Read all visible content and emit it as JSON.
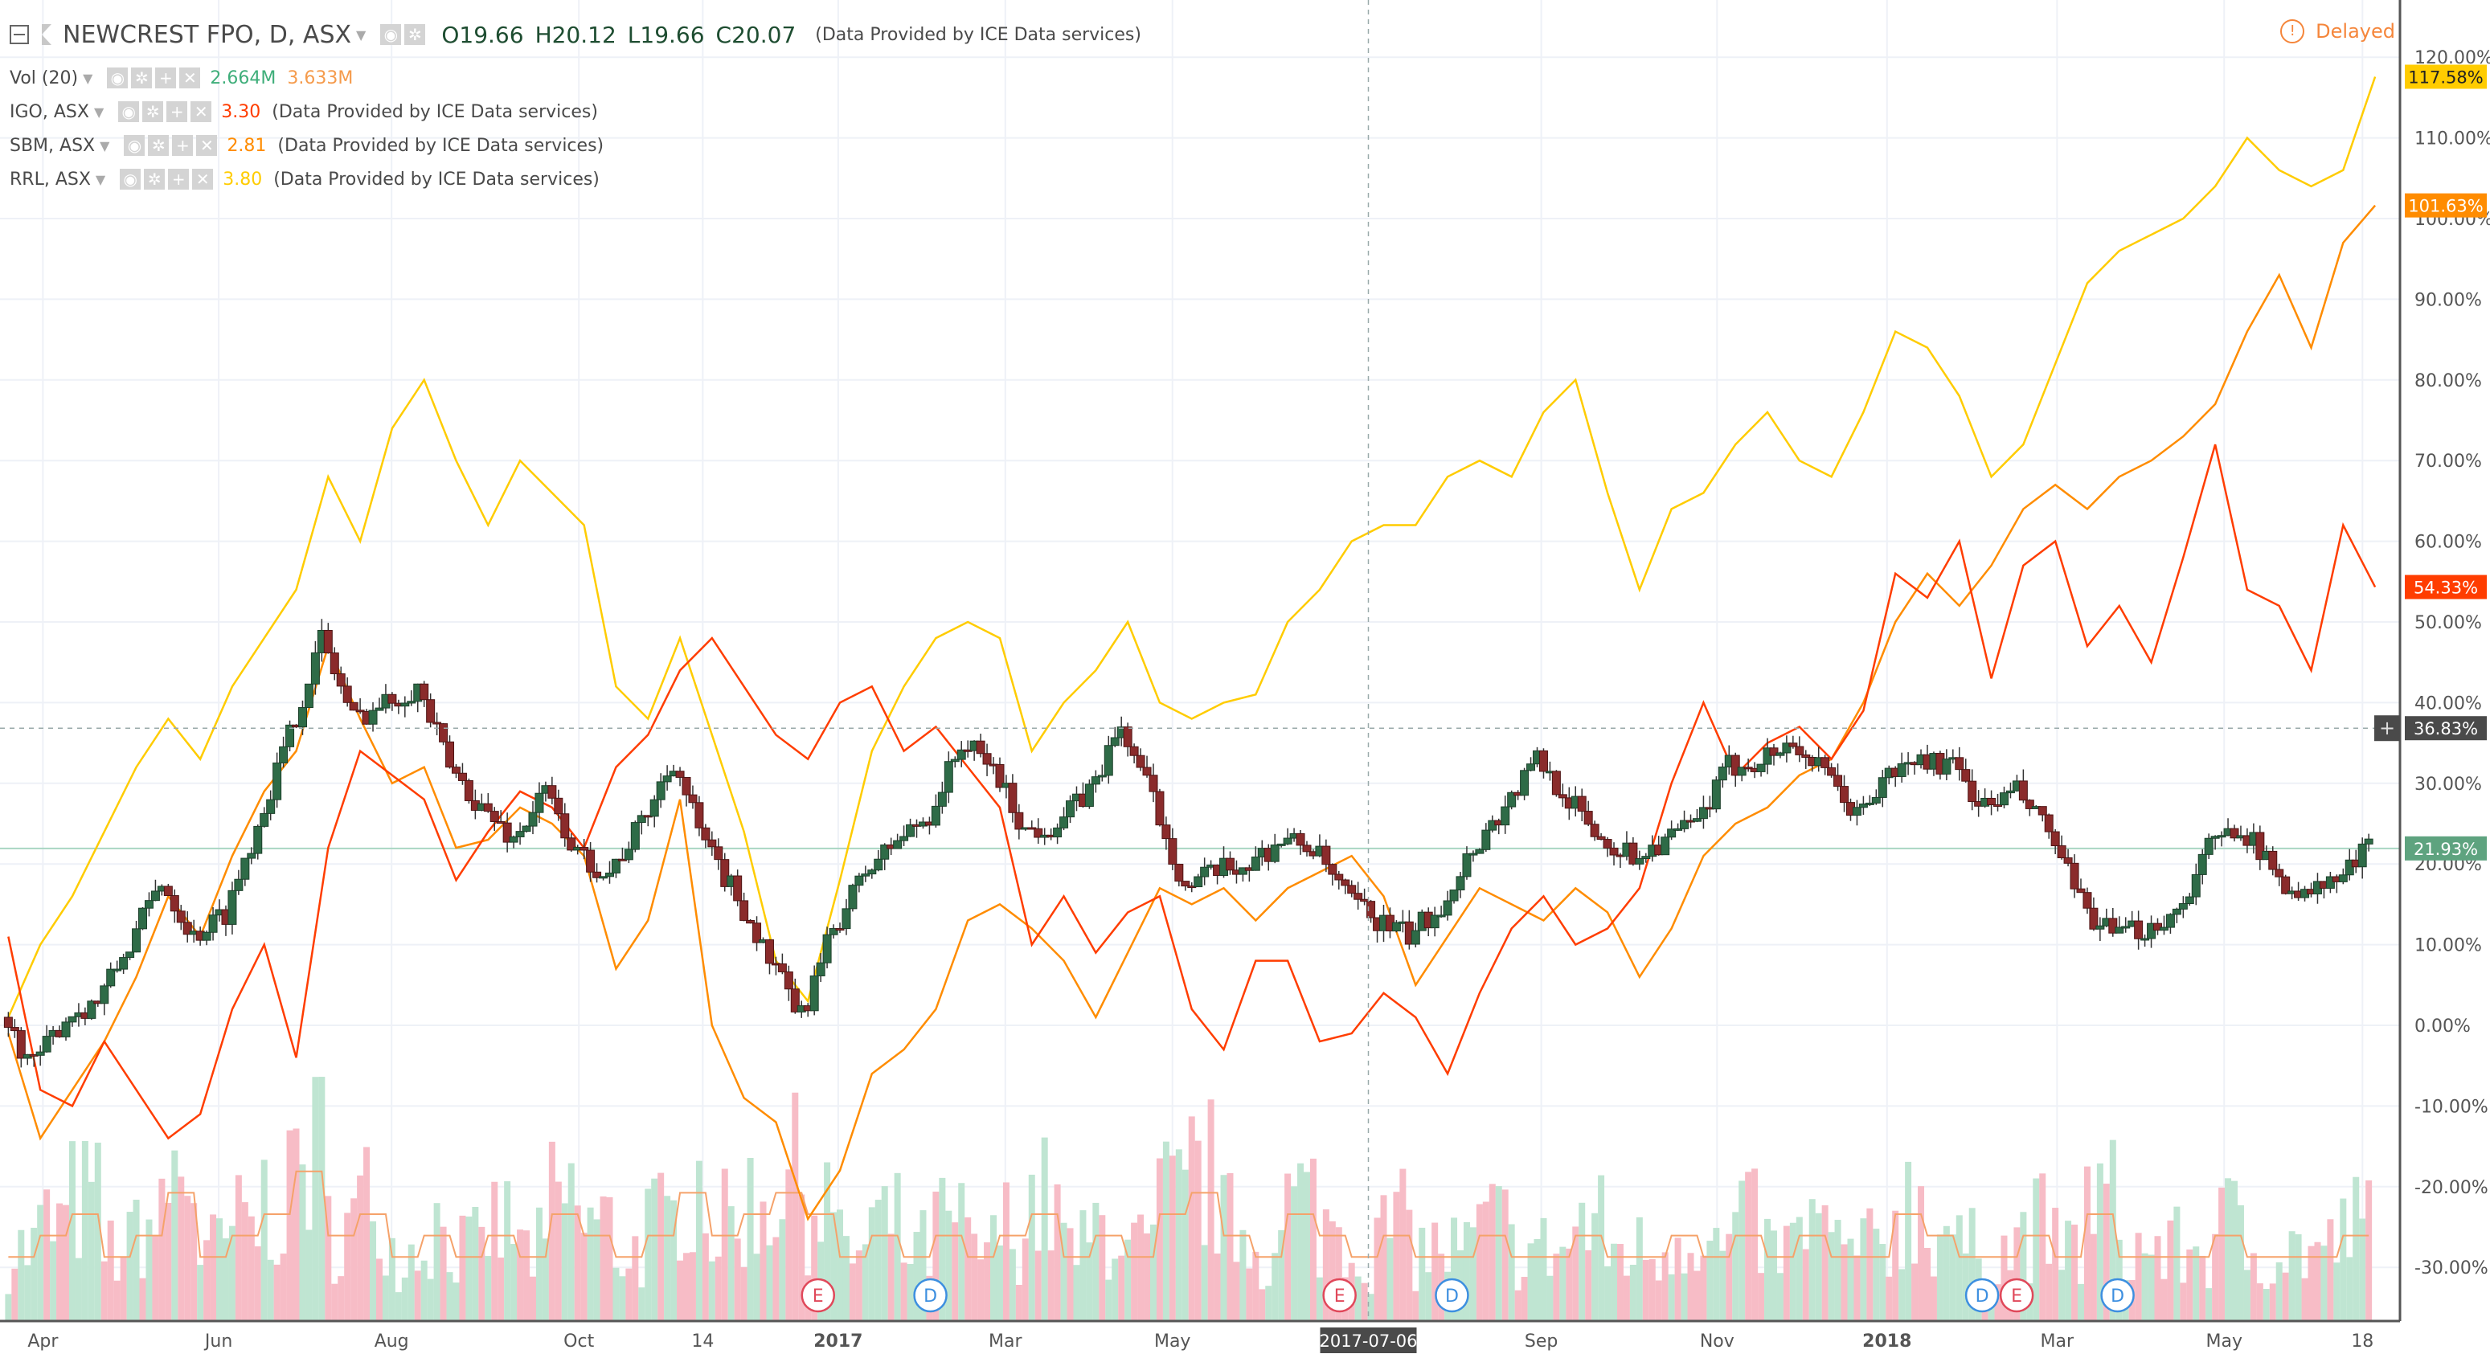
{
  "header": {
    "symbol": "NEWCREST FPO, D, ASX",
    "open": "O19.66",
    "high": "H20.12",
    "low": "L19.66",
    "close": "C20.07",
    "provider": "(Data Provided by ICE Data services)",
    "delayed": "Delayed"
  },
  "volume_legend": {
    "label": "Vol (20)",
    "value": "2.664M",
    "ma": "3.633M"
  },
  "compare": [
    {
      "label": "IGO, ASX",
      "value": "3.30",
      "note": "(Data Provided by ICE Data services)",
      "color": "#ff3d00"
    },
    {
      "label": "SBM, ASX",
      "value": "2.81",
      "note": "(Data Provided by ICE Data services)",
      "color": "#ff8c00"
    },
    {
      "label": "RRL, ASX",
      "value": "3.80",
      "note": "(Data Provided by ICE Data services)",
      "color": "#ffcc00"
    }
  ],
  "chart_data": {
    "type": "line",
    "x_unit": "days since 2016-04-01",
    "x_start": -12,
    "x_step": 11.1,
    "ylabel": "% change",
    "ylim": [
      -35,
      125
    ],
    "y_ticks": [
      "120.00%",
      "110.00%",
      "100.00%",
      "90.00%",
      "80.00%",
      "70.00%",
      "60.00%",
      "50.00%",
      "40.00%",
      "30.00%",
      "20.00%",
      "10.00%",
      "0.00%",
      "-10.00%",
      "-20.00%",
      "-30.00%"
    ],
    "y_tick_values": [
      120,
      110,
      100,
      90,
      80,
      70,
      60,
      50,
      40,
      30,
      20,
      10,
      0,
      -10,
      -20,
      -30
    ],
    "x_ticks": [
      {
        "label": "Apr",
        "day": 0
      },
      {
        "label": "Jun",
        "day": 61
      },
      {
        "label": "Aug",
        "day": 121
      },
      {
        "label": "Oct",
        "day": 186
      },
      {
        "label": "14",
        "day": 229
      },
      {
        "label": "2017",
        "day": 276
      },
      {
        "label": "Mar",
        "day": 334
      },
      {
        "label": "May",
        "day": 392
      },
      {
        "label": "Sep",
        "day": 520
      },
      {
        "label": "Nov",
        "day": 581
      },
      {
        "label": "2018",
        "day": 640
      },
      {
        "label": "Mar",
        "day": 699
      },
      {
        "label": "May",
        "day": 757
      },
      {
        "label": "18",
        "day": 805
      }
    ],
    "crosshair": {
      "date_label": "2017-07-06",
      "day": 460,
      "value": 36.83,
      "value_label": "36.83%"
    },
    "series": [
      {
        "name": "NEWCREST FPO",
        "kind": "candles",
        "last_label": "21.93%",
        "color": "#5ea37f",
        "values": [
          1,
          -5,
          1,
          3,
          10,
          18,
          11,
          14,
          25,
          36,
          48,
          38,
          40,
          42,
          32,
          27,
          23,
          29,
          21,
          19,
          25,
          33,
          22,
          16,
          8,
          1,
          12,
          19,
          23,
          26,
          35,
          32,
          24,
          25,
          29,
          37,
          28,
          17,
          19,
          20,
          23,
          22,
          16,
          13,
          11,
          15,
          22,
          27,
          33,
          28,
          23,
          21,
          23,
          25,
          32,
          33,
          35,
          31,
          26,
          31,
          33,
          32,
          27,
          29,
          24,
          15,
          11,
          12,
          14,
          22,
          25,
          19,
          16,
          18,
          21.93
        ]
      },
      {
        "name": "IGO, ASX",
        "kind": "line",
        "last_label": "54.33%",
        "color": "#ff3d00",
        "values": [
          11,
          -8,
          -10,
          -2,
          -8,
          -14,
          -11,
          2,
          10,
          -4,
          22,
          34,
          31,
          28,
          18,
          24,
          29,
          27,
          22,
          32,
          36,
          44,
          48,
          42,
          36,
          33,
          40,
          42,
          34,
          37,
          32,
          27,
          10,
          16,
          9,
          14,
          16,
          2,
          -3,
          8,
          8,
          -2,
          -1,
          4,
          1,
          -6,
          4,
          12,
          16,
          10,
          12,
          17,
          30,
          40,
          31,
          35,
          37,
          33,
          39,
          56,
          53,
          60,
          43,
          57,
          60,
          47,
          52,
          45,
          58,
          72,
          54,
          52,
          44,
          62,
          54.33
        ]
      },
      {
        "name": "SBM, ASX",
        "kind": "line",
        "last_label": "101.63%",
        "color": "#ff8c00",
        "values": [
          -1,
          -14,
          -8,
          -2,
          6,
          16,
          11,
          21,
          29,
          34,
          47,
          38,
          30,
          32,
          22,
          23,
          27,
          25,
          21,
          7,
          13,
          28,
          0,
          -9,
          -12,
          -24,
          -18,
          -6,
          -3,
          2,
          13,
          15,
          12,
          8,
          1,
          9,
          17,
          15,
          17,
          13,
          17,
          19,
          21,
          16,
          5,
          11,
          17,
          15,
          13,
          17,
          14,
          6,
          12,
          21,
          25,
          27,
          31,
          33,
          40,
          50,
          56,
          52,
          57,
          64,
          67,
          64,
          68,
          70,
          73,
          77,
          86,
          93,
          84,
          97,
          101.63
        ]
      },
      {
        "name": "RRL, ASX",
        "kind": "line",
        "last_label": "117.58%",
        "color": "#ffcc00",
        "values": [
          1,
          10,
          16,
          24,
          32,
          38,
          33,
          42,
          48,
          54,
          68,
          60,
          74,
          80,
          70,
          62,
          70,
          66,
          62,
          42,
          38,
          48,
          36,
          24,
          8,
          3,
          18,
          34,
          42,
          48,
          50,
          48,
          34,
          40,
          44,
          50,
          40,
          38,
          40,
          41,
          50,
          54,
          60,
          62,
          62,
          68,
          70,
          68,
          76,
          80,
          66,
          54,
          64,
          66,
          72,
          76,
          70,
          68,
          76,
          86,
          84,
          78,
          68,
          72,
          82,
          92,
          96,
          98,
          100,
          104,
          110,
          106,
          104,
          106,
          117.58
        ]
      }
    ],
    "volume_m": [
      3,
      4,
      5,
      3,
      4,
      6,
      3,
      4,
      5,
      7,
      4,
      5,
      3,
      4,
      3,
      4,
      3,
      5,
      4,
      3,
      4,
      6,
      4,
      5,
      6,
      5,
      3,
      4,
      3,
      4,
      3,
      4,
      5,
      3,
      4,
      3,
      5,
      6,
      4,
      3,
      5,
      4,
      3,
      4,
      3,
      3,
      4,
      3,
      3,
      4,
      3,
      3,
      4,
      3,
      4,
      3,
      4,
      3,
      3,
      5,
      4,
      3,
      3,
      4,
      3,
      5,
      3,
      3,
      3,
      4,
      3,
      3,
      3,
      4,
      2.664
    ],
    "events": [
      {
        "type": "E",
        "day": 269
      },
      {
        "type": "D",
        "day": 308
      },
      {
        "type": "E",
        "day": 450
      },
      {
        "type": "D",
        "day": 489
      },
      {
        "type": "D",
        "day": 673
      },
      {
        "type": "E",
        "day": 685
      },
      {
        "type": "D",
        "day": 720
      }
    ]
  }
}
